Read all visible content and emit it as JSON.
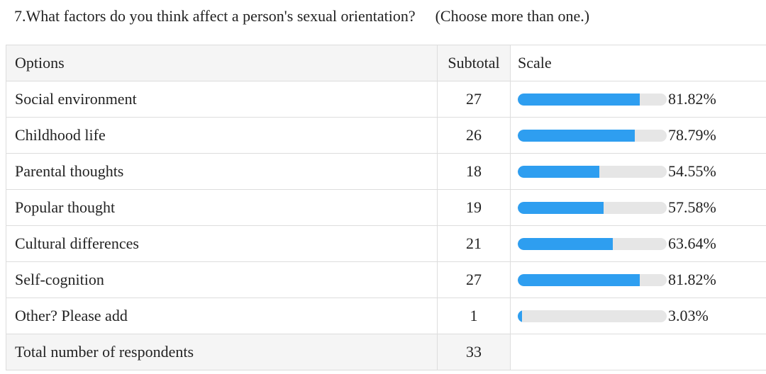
{
  "question": {
    "title": "7.What factors do you think affect a person's sexual orientation?",
    "hint": "(Choose more than one.)"
  },
  "table": {
    "headers": {
      "options": "Options",
      "subtotal": "Subtotal",
      "scale": "Scale"
    },
    "total_label": "Total number of respondents",
    "total_value": "33"
  },
  "colors": {
    "bar_fill": "#2e9ef0",
    "bar_track": "#e6e6e6",
    "header_bg": "#f5f5f5"
  },
  "chart_data": {
    "type": "bar",
    "categories": [
      "Social environment",
      "Childhood life",
      "Parental thoughts",
      "Popular thought",
      "Cultural differences",
      "Self-cognition",
      "Other? Please add"
    ],
    "subtotals": [
      "27",
      "26",
      "18",
      "19",
      "21",
      "27",
      "1"
    ],
    "values": [
      81.82,
      78.79,
      54.55,
      57.58,
      63.64,
      81.82,
      3.03
    ],
    "labels": [
      "81.82%",
      "78.79%",
      "54.55%",
      "57.58%",
      "63.64%",
      "81.82%",
      "3.03%"
    ],
    "ylim": [
      0,
      100
    ]
  }
}
